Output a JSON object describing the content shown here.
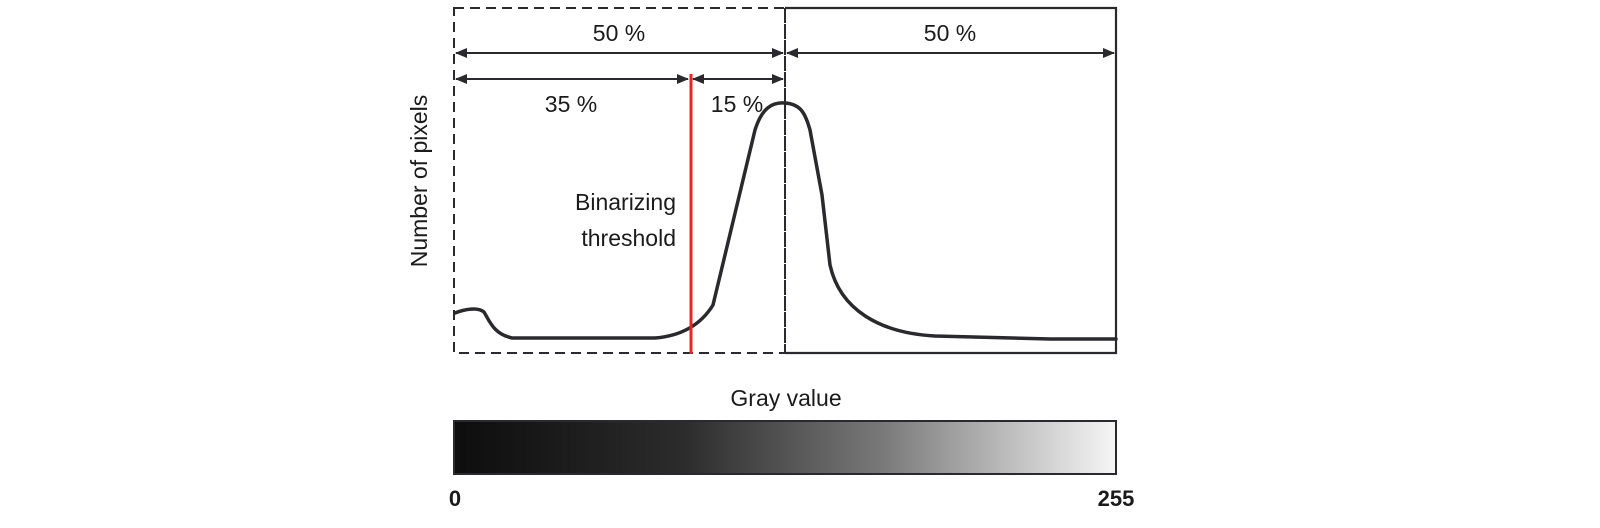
{
  "diagram": {
    "axis_label_y": "Number of pixels",
    "axis_label_x": "Gray value",
    "threshold_label_line1": "Binarizing",
    "threshold_label_line2": "threshold",
    "span_left_half": "50 %",
    "span_right_half": "50 %",
    "span_below_threshold": "35 %",
    "span_threshold_to_mid": "15 %",
    "scale_min": "0",
    "scale_max": "255"
  },
  "colors": {
    "curve": "#2a2a2e",
    "threshold_line": "#e8261f",
    "frame": "#2a2a2e",
    "gradient_start": "#0d0d0d",
    "gradient_end": "#f6f6f6"
  }
}
